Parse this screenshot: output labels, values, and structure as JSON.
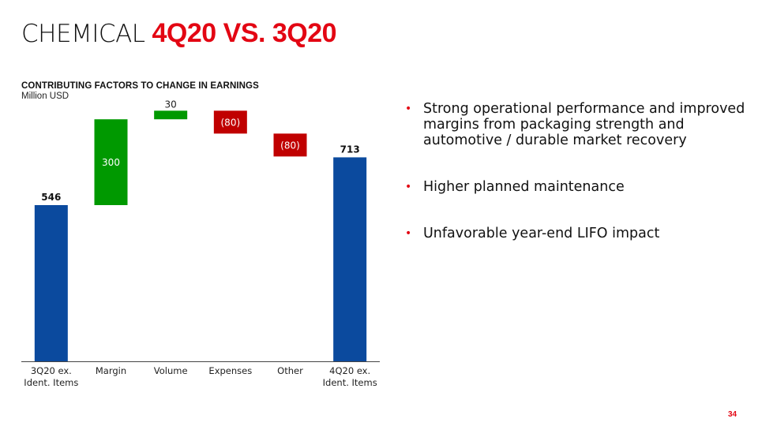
{
  "header": {
    "title_prefix": "CHEMICAL",
    "title_accent": "4Q20 VS. 3Q20"
  },
  "colors": {
    "accent": "#e30613",
    "total_bar": "#0b4a9e",
    "increase_bar": "#009900",
    "decrease_bar": "#c00000"
  },
  "bullets": [
    "Strong operational performance and improved margins from packaging strength and automotive / durable market recovery",
    "Higher planned maintenance",
    "Unfavorable year-end LIFO impact"
  ],
  "bullet_icon": "bullet-dot",
  "page_number": "34",
  "chart_data": {
    "type": "waterfall",
    "title": "CONTRIBUTING FACTORS TO CHANGE IN EARNINGS",
    "ylabel": "Million USD",
    "xlabel": "",
    "categories": [
      "3Q20 ex. Ident. Items",
      "Margin",
      "Volume",
      "Expenses",
      "Other",
      "4Q20 ex. Ident. Items"
    ],
    "category_lines": [
      [
        "3Q20 ex.",
        "Ident. Items"
      ],
      [
        "Margin"
      ],
      [
        "Volume"
      ],
      [
        "Expenses"
      ],
      [
        "Other"
      ],
      [
        "4Q20 ex.",
        "Ident. Items"
      ]
    ],
    "values": [
      546,
      300,
      30,
      -80,
      -80,
      713
    ],
    "kinds": [
      "total",
      "increase",
      "increase",
      "decrease",
      "decrease",
      "total"
    ],
    "data_labels": [
      "546",
      "300",
      "30",
      "(80)",
      "(80)",
      "713"
    ],
    "ylim": [
      0,
      820
    ],
    "grid": false,
    "legend": "none"
  }
}
